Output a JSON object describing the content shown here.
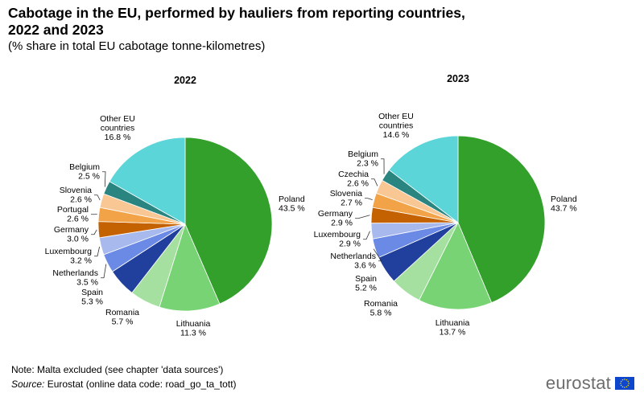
{
  "title": "Cabotage in the EU, performed by hauliers from reporting countries, 2022 and 2023",
  "subtitle": "(% share in total EU cabotage tonne-kilometres)",
  "notes": {
    "note": "Note: Malta excluded (see chapter 'data sources')",
    "source_label": "Source:",
    "source_text": " Eurostat (online data code: road_go_ta_tott)"
  },
  "logo": {
    "text": "eurostat",
    "flag_color": "#0e47cb",
    "star_color": "#ffdd00"
  },
  "chart_data": [
    {
      "type": "pie",
      "title": "2022",
      "unit": "%",
      "slices": [
        {
          "label": "Poland",
          "value": 43.5,
          "color": "#33a02c"
        },
        {
          "label": "Lithuania",
          "value": 11.3,
          "color": "#78d374"
        },
        {
          "label": "Romania",
          "value": 5.7,
          "color": "#a6e0a0"
        },
        {
          "label": "Spain",
          "value": 5.3,
          "color": "#213f9d"
        },
        {
          "label": "Netherlands",
          "value": 3.5,
          "color": "#6b8ae5"
        },
        {
          "label": "Luxembourg",
          "value": 3.2,
          "color": "#a8b9ee"
        },
        {
          "label": "Germany",
          "value": 3.0,
          "color": "#c46100"
        },
        {
          "label": "Portugal",
          "value": 2.6,
          "color": "#f2a348"
        },
        {
          "label": "Slovenia",
          "value": 2.6,
          "color": "#f9c794"
        },
        {
          "label": "Belgium",
          "value": 2.5,
          "color": "#2a8580"
        },
        {
          "label": "Other EU countries",
          "value": 16.8,
          "color": "#5bd5d8"
        }
      ]
    },
    {
      "type": "pie",
      "title": "2023",
      "unit": "%",
      "slices": [
        {
          "label": "Poland",
          "value": 43.7,
          "color": "#33a02c"
        },
        {
          "label": "Lithuania",
          "value": 13.7,
          "color": "#78d374"
        },
        {
          "label": "Romania",
          "value": 5.8,
          "color": "#a6e0a0"
        },
        {
          "label": "Spain",
          "value": 5.2,
          "color": "#213f9d"
        },
        {
          "label": "Netherlands",
          "value": 3.6,
          "color": "#6b8ae5"
        },
        {
          "label": "Luxembourg",
          "value": 2.9,
          "color": "#a8b9ee"
        },
        {
          "label": "Germany",
          "value": 2.9,
          "color": "#c46100"
        },
        {
          "label": "Slovenia",
          "value": 2.7,
          "color": "#f2a348"
        },
        {
          "label": "Czechia",
          "value": 2.6,
          "color": "#f9c794"
        },
        {
          "label": "Belgium",
          "value": 2.3,
          "color": "#2a8580"
        },
        {
          "label": "Other EU countries",
          "value": 14.6,
          "color": "#5bd5d8"
        }
      ]
    }
  ]
}
